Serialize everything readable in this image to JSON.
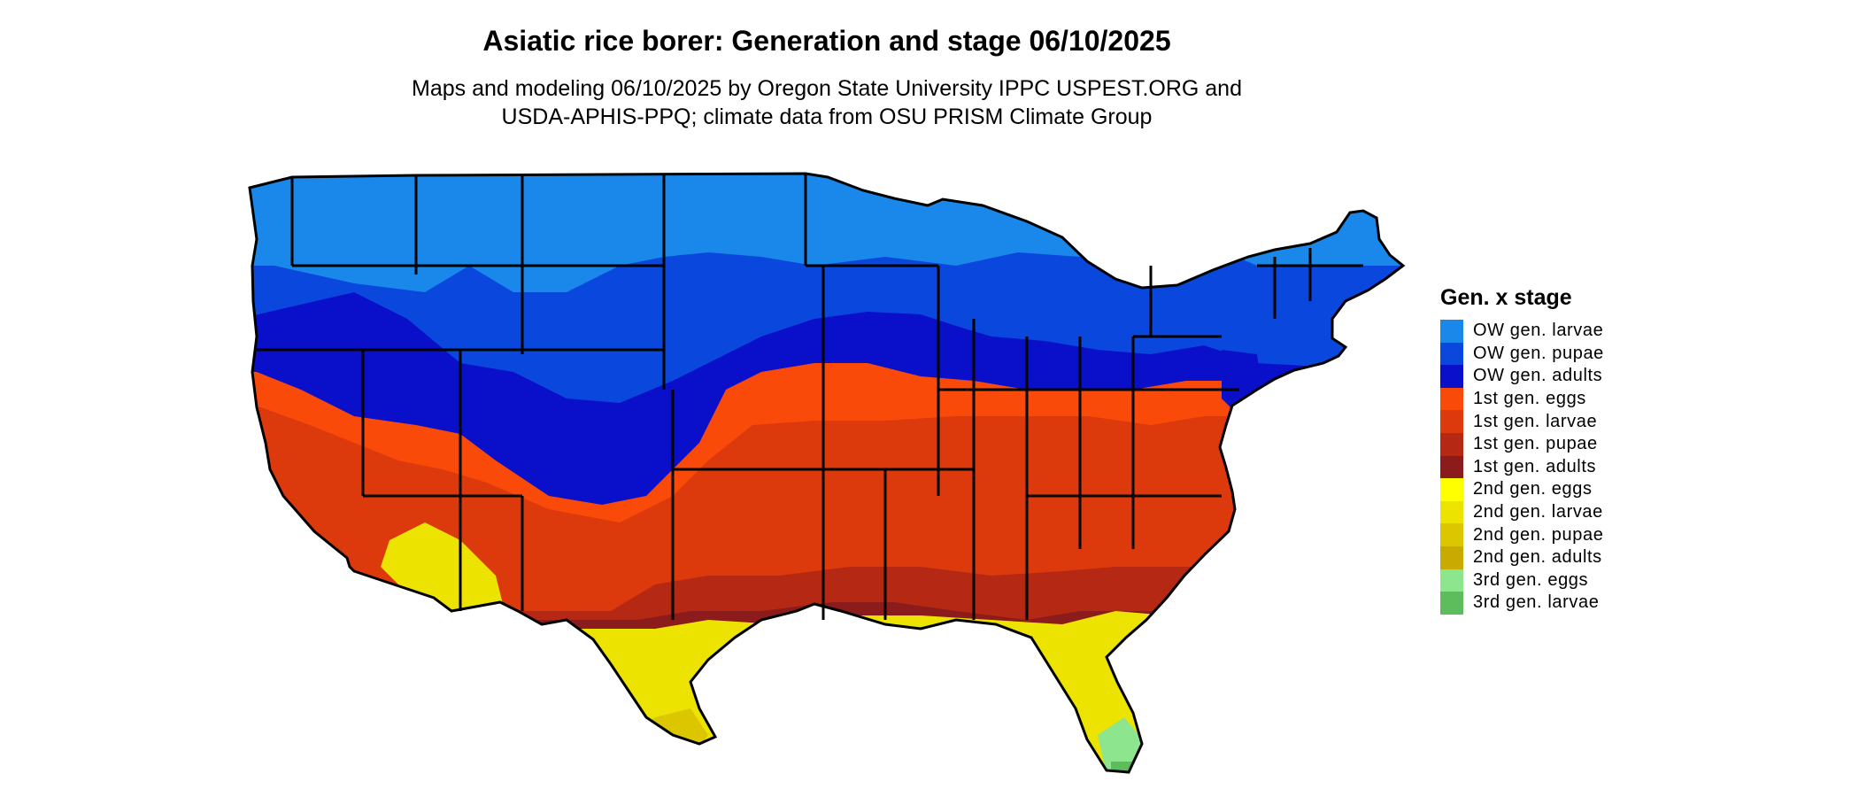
{
  "header": {
    "title": "Asiatic rice borer: Generation and stage 06/10/2025",
    "subtitle_line1": "Maps and modeling 06/10/2025 by Oregon State University IPPC USPEST.ORG and",
    "subtitle_line2": "USDA-APHIS-PPQ; climate data from OSU PRISM Climate Group"
  },
  "legend": {
    "title": "Gen. x stage",
    "items": [
      {
        "label": "OW gen. larvae",
        "color": "#1a87ea"
      },
      {
        "label": "OW gen. pupae",
        "color": "#0a48dd"
      },
      {
        "label": "OW gen. adults",
        "color": "#0a10c9"
      },
      {
        "label": "1st gen. eggs",
        "color": "#fa4a0a"
      },
      {
        "label": "1st gen. larvae",
        "color": "#dc3a0c"
      },
      {
        "label": "1st gen. pupae",
        "color": "#b52814"
      },
      {
        "label": "1st gen. adults",
        "color": "#8c1c1c"
      },
      {
        "label": "2nd gen. eggs",
        "color": "#ffff00"
      },
      {
        "label": "2nd gen. larvae",
        "color": "#ece400"
      },
      {
        "label": "2nd gen. pupae",
        "color": "#dcc600"
      },
      {
        "label": "2nd gen. adults",
        "color": "#c8aa00"
      },
      {
        "label": "3rd gen. eggs",
        "color": "#8de58d"
      },
      {
        "label": "3rd gen. larvae",
        "color": "#5dbd5d"
      }
    ]
  }
}
